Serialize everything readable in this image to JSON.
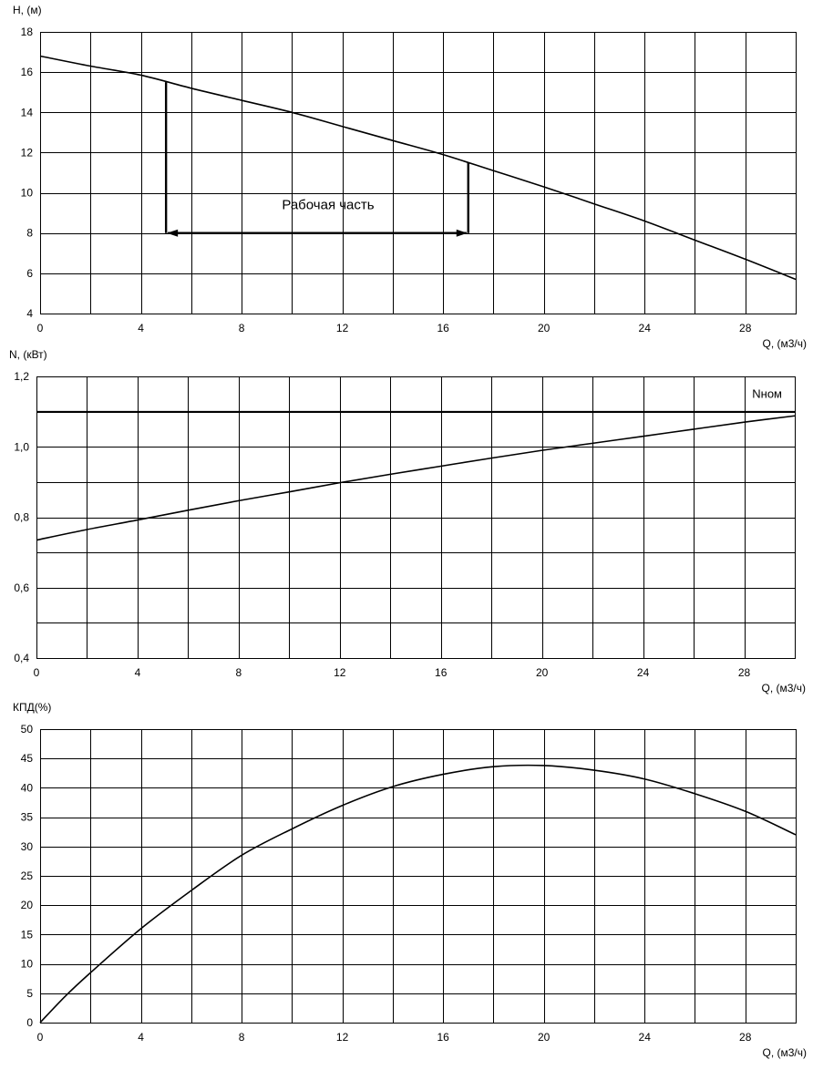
{
  "chart_data": [
    {
      "id": "head",
      "type": "line",
      "ylabel": "H, (м)",
      "xlabel": "Q, (м3/ч)",
      "xlim": [
        0,
        30
      ],
      "ylim": [
        4,
        18
      ],
      "x_major_ticks": [
        0,
        4,
        8,
        12,
        16,
        20,
        24,
        28
      ],
      "x_grid_step": 2,
      "y_ticks": [
        4,
        6,
        8,
        10,
        12,
        14,
        16,
        18
      ],
      "grid": true,
      "series": [
        {
          "x": [
            0,
            2,
            4,
            6,
            8,
            10,
            12,
            14,
            16,
            18,
            20,
            22,
            24,
            26,
            28,
            30
          ],
          "y": [
            16.8,
            16.3,
            15.85,
            15.2,
            14.6,
            14.0,
            13.3,
            12.6,
            11.9,
            11.1,
            10.3,
            9.45,
            8.6,
            7.65,
            6.7,
            5.7
          ]
        }
      ],
      "annotation": {
        "text": "Рабочая часть",
        "range": [
          5,
          17
        ],
        "y_arrow": 8,
        "y_tops": [
          15.5,
          11.5
        ]
      }
    },
    {
      "id": "power",
      "type": "line",
      "ylabel": "N, (кВт)",
      "xlabel": "Q, (м3/ч)",
      "xlim": [
        0,
        30
      ],
      "ylim": [
        0.4,
        1.2
      ],
      "x_major_ticks": [
        0,
        4,
        8,
        12,
        16,
        20,
        24,
        28
      ],
      "x_grid_step": 2,
      "y_ticks": [
        0.4,
        0.6,
        0.8,
        1.0,
        1.2
      ],
      "y_tick_labels": [
        "0,4",
        "0,6",
        "0,8",
        "1,0",
        "1,2"
      ],
      "y_grid_step": 0.1,
      "grid": true,
      "series": [
        {
          "x": [
            0,
            2,
            4,
            6,
            8,
            10,
            12,
            14,
            16,
            18,
            20,
            22,
            24,
            26,
            28,
            30
          ],
          "y": [
            0.735,
            0.765,
            0.792,
            0.82,
            0.847,
            0.872,
            0.898,
            0.922,
            0.945,
            0.968,
            0.99,
            1.01,
            1.03,
            1.05,
            1.07,
            1.088
          ]
        }
      ],
      "reference_line": {
        "label": "Nном",
        "y": 1.1
      }
    },
    {
      "id": "efficiency",
      "type": "line",
      "ylabel": "КПД(%)",
      "xlabel": "Q, (м3/ч)",
      "xlim": [
        0,
        30
      ],
      "ylim": [
        0,
        50
      ],
      "x_major_ticks": [
        0,
        4,
        8,
        12,
        16,
        20,
        24,
        28
      ],
      "x_grid_step": 2,
      "y_ticks": [
        0,
        5,
        10,
        15,
        20,
        25,
        30,
        35,
        40,
        45,
        50
      ],
      "grid": true,
      "series": [
        {
          "x": [
            0,
            1,
            2,
            4,
            6,
            8,
            10,
            12,
            14,
            16,
            18,
            20,
            22,
            24,
            26,
            28,
            30
          ],
          "y": [
            0,
            4.5,
            8.5,
            16,
            22.5,
            28.5,
            33,
            37,
            40.2,
            42.3,
            43.6,
            43.8,
            43,
            41.5,
            39,
            36,
            32
          ]
        }
      ]
    }
  ]
}
